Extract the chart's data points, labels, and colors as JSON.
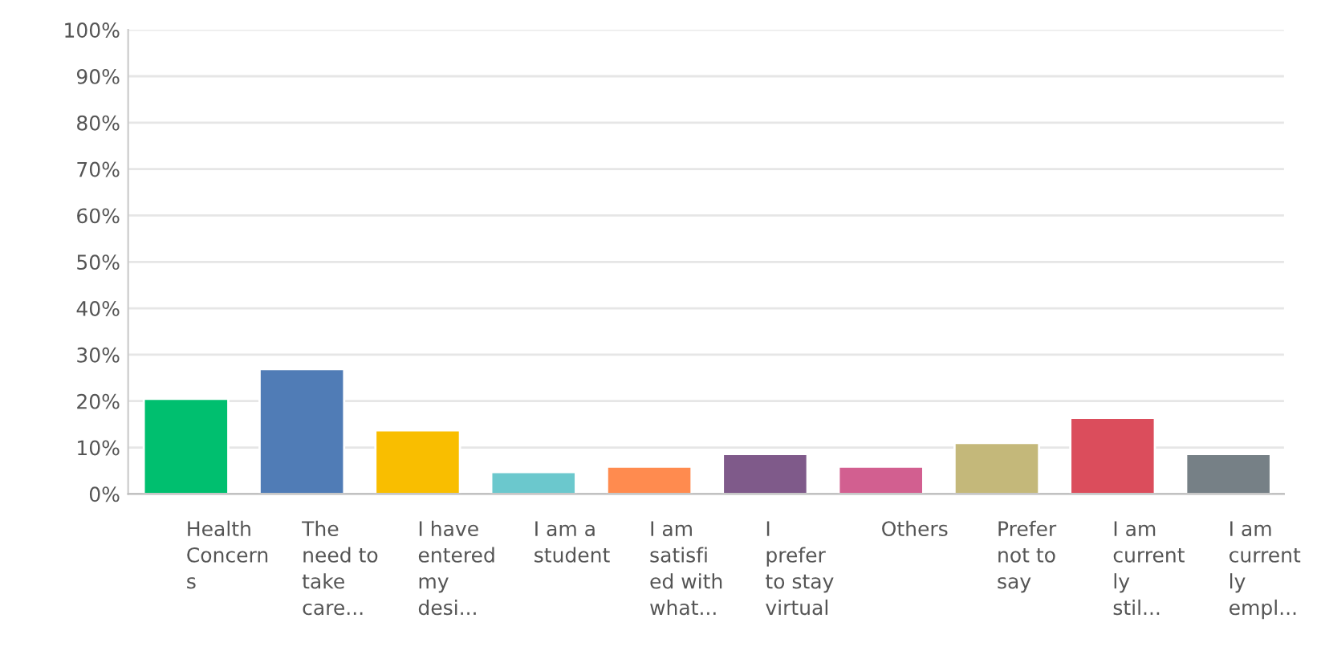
{
  "chart_data": {
    "type": "bar",
    "categories": [
      "Health\nConcern\ns",
      "The\nneed to\ntake\ncare...",
      "I have\nentered\nmy\ndesi...",
      "I am a\nstudent",
      "I am\nsatisfi\ned with\nwhat...",
      "I\nprefer\nto stay\nvirtual",
      "Others",
      "Prefer\nnot to\nsay",
      "I am\ncurrent\nly\nstil...",
      "I am\ncurrent\nly\nempl..."
    ],
    "values": [
      20.5,
      26.9,
      13.7,
      4.7,
      5.9,
      8.6,
      5.9,
      11.0,
      16.4,
      8.6
    ],
    "colors": [
      "#00bf6f",
      "#507cb6",
      "#f9be00",
      "#6bc8cd",
      "#ff8b4f",
      "#7f5a8a",
      "#d25f90",
      "#c4b87a",
      "#db4d5c",
      "#768086"
    ],
    "ylim": [
      0,
      100
    ],
    "yticks": [
      {
        "value": 0,
        "label": "0%"
      },
      {
        "value": 10,
        "label": "10%"
      },
      {
        "value": 20,
        "label": "20%"
      },
      {
        "value": 30,
        "label": "30%"
      },
      {
        "value": 40,
        "label": "40%"
      },
      {
        "value": 50,
        "label": "50%"
      },
      {
        "value": 60,
        "label": "60%"
      },
      {
        "value": 70,
        "label": "70%"
      },
      {
        "value": 80,
        "label": "80%"
      },
      {
        "value": 90,
        "label": "90%"
      },
      {
        "value": 100,
        "label": "100%"
      }
    ],
    "grid": "y"
  }
}
